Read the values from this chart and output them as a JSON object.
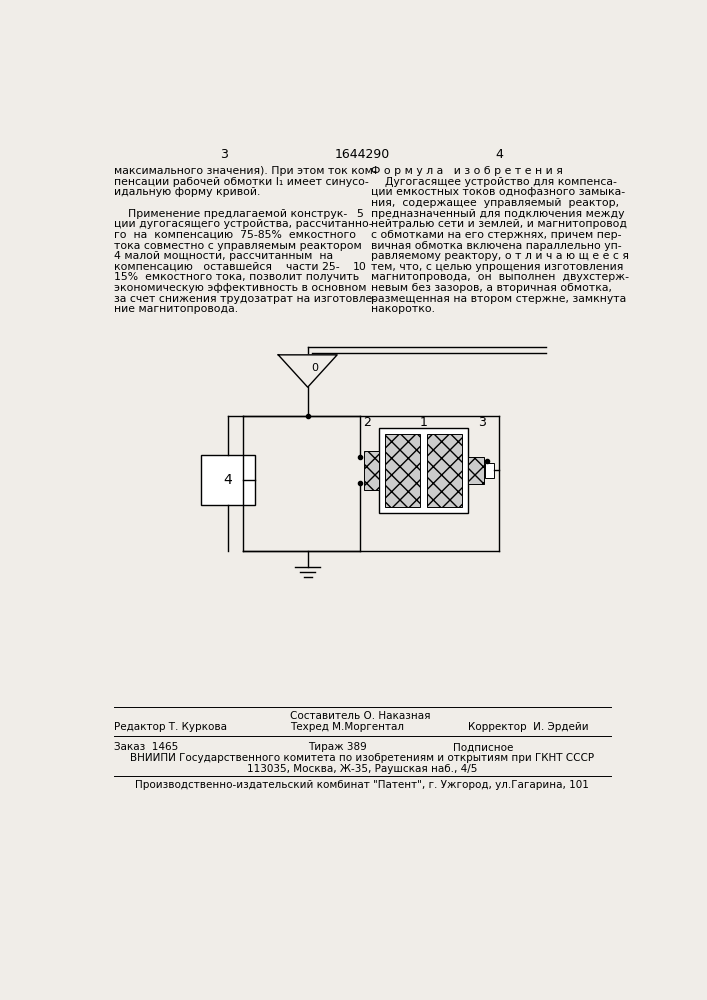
{
  "bg_color": "#f0ede8",
  "page_num_left": "3",
  "page_num_center": "1644290",
  "page_num_right": "4",
  "left_col_lines": [
    "максимального значения). При этом ток ком-",
    "пенсации рабочей обмотки I₁ имеет синусо-",
    "идальную форму кривой.",
    "",
    "    Применение предлагаемой конструк-",
    "ции дугогасящего устройства, рассчитанно-",
    "го  на  компенсацию  75-85%  емкостного",
    "тока совместно с управляемым реактором",
    "4 малой мощности, рассчитанным  на",
    "компенсацию   оставшейся    части 25-",
    "15%  емкостного тока, позволит получить",
    "экономическую эффективность в основном",
    "за счет снижения трудозатрат на изготовле-",
    "ние магнитопровода."
  ],
  "line_num_5_row": 4,
  "line_num_10_row": 9,
  "right_col_title": "Ф о р м у л а   и з о б р е т е н и я",
  "right_col_lines": [
    "    Дугогасящее устройство для компенса-",
    "ции емкостных токов однофазного замыка-",
    "ния,  содержащее  управляемый  реактор,",
    "предназначенный для подключения между",
    "нейтралью сети и землей, и магнитопровод",
    "с обмотками на его стержнях, причем пер-",
    "вичная обмотка включена параллельно уп-",
    "равляемому реактору, о т л и ч а ю щ е е с я",
    "тем, что, с целью упрощения изготовления",
    "магнитопровода,  он  выполнен  двухстерж-",
    "невым без зазоров, а вторичная обмотка,",
    "размещенная на втором стержне, замкнута",
    "накоротко."
  ],
  "footer_editor_label": "Редактор",
  "footer_editor_name": " Т. Куркова",
  "footer_compiler_label": "Составитель О. Наказная",
  "footer_tehred_label": "Техред М.Моргентал",
  "footer_corrector_label": "Корректор",
  "footer_corrector_name": "  И. Эрдейи",
  "footer_order": "Заказ  1465",
  "footer_tirazh": "Тираж 389",
  "footer_podpisnoe": "Подписное",
  "footer_vniiipi": "ВНИИПИ Государственного комитета по изобретениям и открытиям при ГКНТ СССР",
  "footer_address": "113035, Москва, Ж-35, Раушская наб., 4/5",
  "footer_patent": "Производственно-издательский комбинат \"Патент\", г. Ужгород, ул.Гагарина, 101"
}
